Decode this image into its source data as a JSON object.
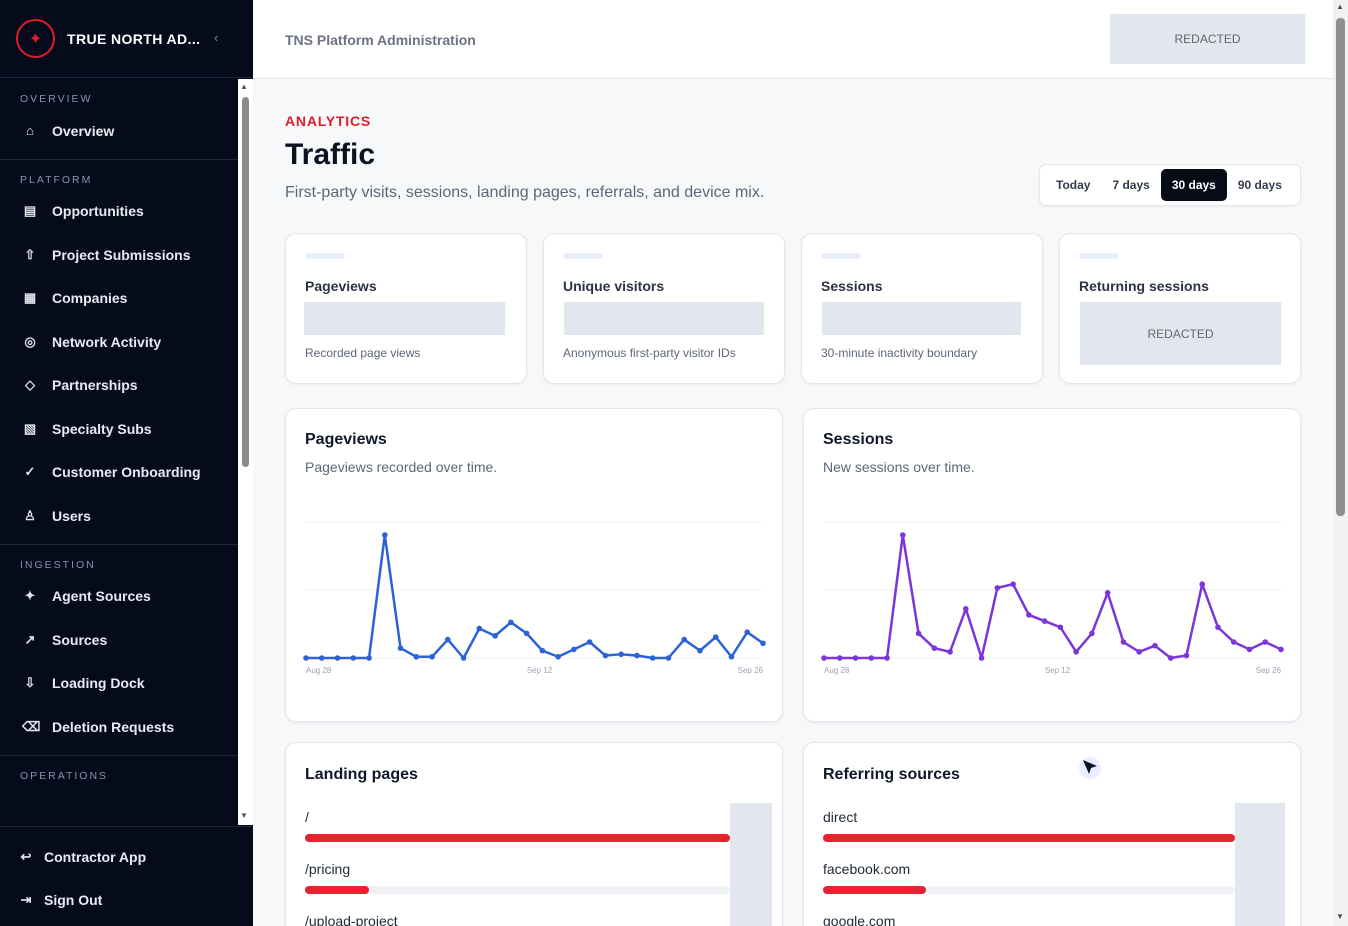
{
  "sidebar": {
    "brand": "TRUE NORTH AD...",
    "collapse_icon": "chevron-left-icon",
    "sections": [
      {
        "heading": "OVERVIEW",
        "items": [
          {
            "label": "Overview",
            "icon": "⌂"
          }
        ]
      },
      {
        "heading": "PLATFORM",
        "items": [
          {
            "label": "Opportunities",
            "icon": "▤"
          },
          {
            "label": "Project Submissions",
            "icon": "⇧"
          },
          {
            "label": "Companies",
            "icon": "▦"
          },
          {
            "label": "Network Activity",
            "icon": "◎"
          },
          {
            "label": "Partnerships",
            "icon": "◇"
          },
          {
            "label": "Specialty Subs",
            "icon": "▧"
          },
          {
            "label": "Customer Onboarding",
            "icon": "✓"
          },
          {
            "label": "Users",
            "icon": "♙"
          }
        ]
      },
      {
        "heading": "INGESTION",
        "items": [
          {
            "label": "Agent Sources",
            "icon": "✦"
          },
          {
            "label": "Sources",
            "icon": "↗"
          },
          {
            "label": "Loading Dock",
            "icon": "⇩"
          },
          {
            "label": "Deletion Requests",
            "icon": "⌫"
          }
        ]
      },
      {
        "heading": "OPERATIONS",
        "items": []
      }
    ],
    "bottom": [
      {
        "label": "Contractor App",
        "icon": "↩"
      },
      {
        "label": "Sign Out",
        "icon": "⇥"
      }
    ]
  },
  "topbar": {
    "title": "TNS Platform Administration",
    "user": "REDACTED"
  },
  "header": {
    "eyebrow": "ANALYTICS",
    "title": "Traffic",
    "subtitle": "First-party visits, sessions, landing pages, referrals, and device mix."
  },
  "ranges": [
    {
      "label": "Today",
      "active": false
    },
    {
      "label": "7 days",
      "active": false
    },
    {
      "label": "30 days",
      "active": true
    },
    {
      "label": "90 days",
      "active": false
    }
  ],
  "stats": [
    {
      "label": "Pageviews",
      "note": "Recorded page views",
      "value": ""
    },
    {
      "label": "Unique visitors",
      "note": "Anonymous first-party visitor IDs",
      "value": ""
    },
    {
      "label": "Sessions",
      "note": "30-minute inactivity boundary",
      "value": ""
    },
    {
      "label": "Returning sessions",
      "note": "",
      "value": "REDACTED"
    }
  ],
  "chart_data": [
    {
      "type": "line",
      "title": "Pageviews",
      "subtitle": "Pageviews recorded over time.",
      "color": "#2c62d6",
      "x_tick_labels": [
        "Aug 28",
        "Sep 12",
        "Sep 26"
      ],
      "values": [
        0,
        0,
        0,
        0,
        0,
        100,
        8,
        1,
        1,
        15,
        0,
        24,
        18,
        29,
        20,
        6,
        1,
        7,
        13,
        2,
        3,
        2,
        0,
        0,
        15,
        6,
        17,
        1,
        21,
        12
      ],
      "ylim": [
        0,
        100
      ],
      "grid": true
    },
    {
      "type": "line",
      "title": "Sessions",
      "subtitle": "New sessions over time.",
      "color": "#7b35d9",
      "x_tick_labels": [
        "Aug 28",
        "Sep 12",
        "Sep 26"
      ],
      "values": [
        0,
        0,
        0,
        0,
        0,
        100,
        20,
        8,
        5,
        40,
        0,
        57,
        60,
        35,
        30,
        25,
        5,
        20,
        53,
        13,
        5,
        10,
        0,
        2,
        60,
        25,
        13,
        7,
        13,
        7
      ],
      "ylim": [
        0,
        100
      ],
      "grid": true
    }
  ],
  "landing": {
    "title": "Landing pages",
    "rows": [
      {
        "label": "/",
        "fraction": 1.0
      },
      {
        "label": "/pricing",
        "fraction": 0.15
      },
      {
        "label": "/upload-project",
        "fraction": 0
      }
    ]
  },
  "referring": {
    "title": "Referring sources",
    "rows": [
      {
        "label": "direct",
        "fraction": 1.0
      },
      {
        "label": "facebook.com",
        "fraction": 0.25
      },
      {
        "label": "google.com",
        "fraction": 0
      }
    ]
  }
}
